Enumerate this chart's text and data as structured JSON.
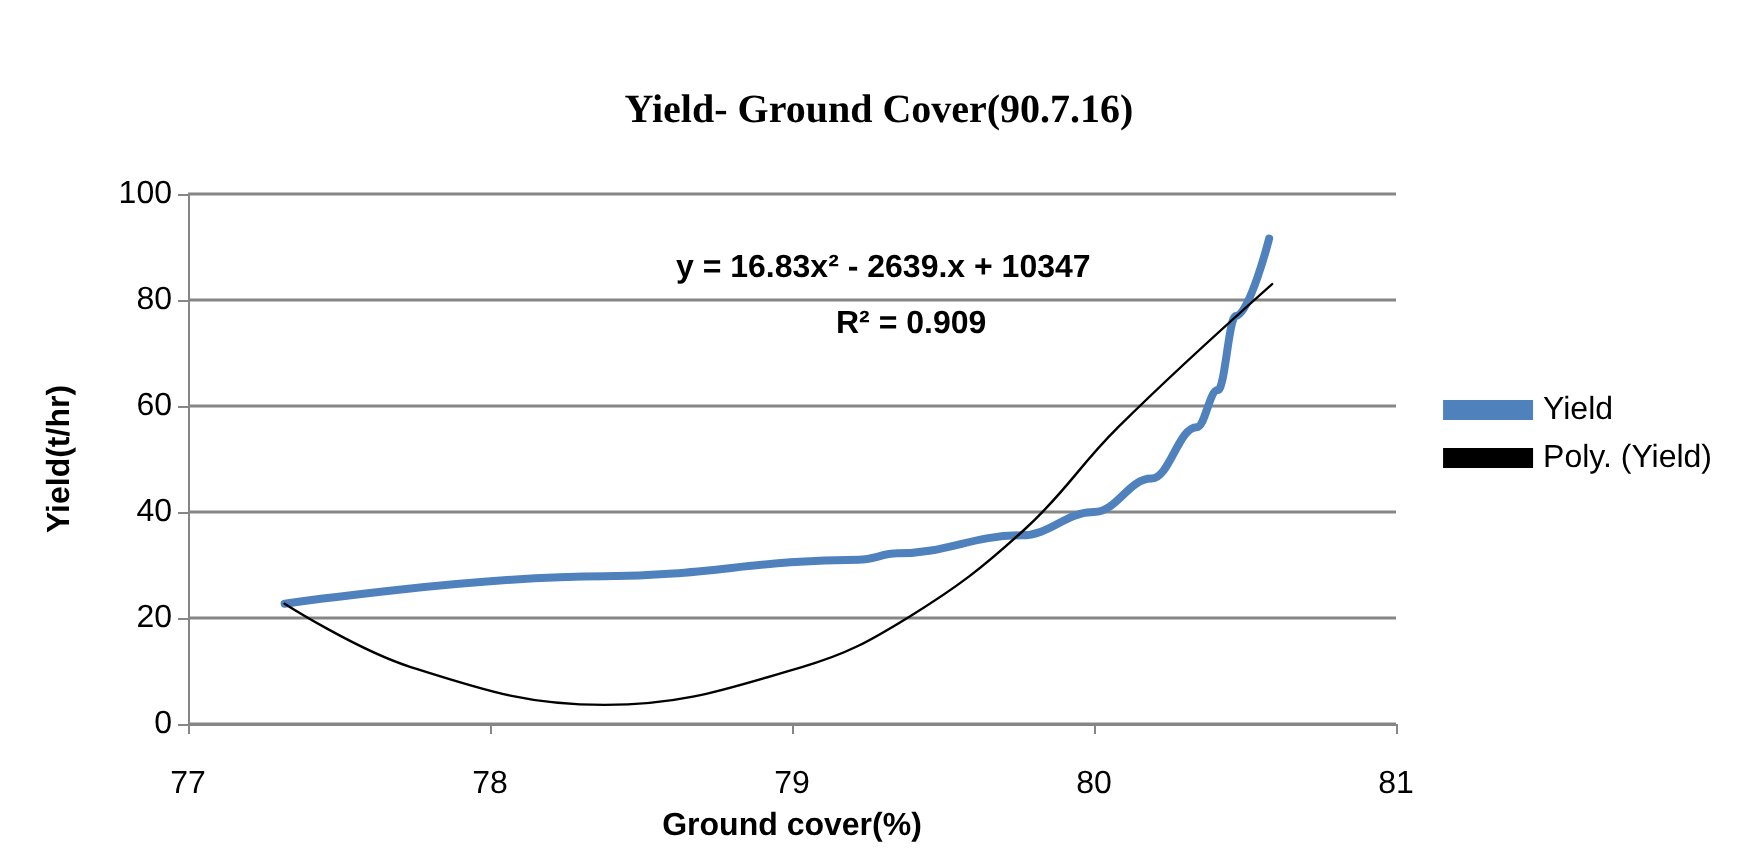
{
  "chart_data": {
    "type": "line",
    "title": "Yield- Ground Cover(90.7.16)",
    "xlabel": "Ground cover(%)",
    "ylabel": "Yield(t/hr)",
    "annotations": [
      "y = 16.83x² - 2639.x + 10347",
      "R² = 0.909"
    ],
    "series": [
      {
        "name": "Yield",
        "color": "#4f81bd",
        "x": [
          77.32,
          78.38,
          79.22,
          79.35,
          79.76,
          80.0,
          80.19,
          80.34,
          80.41,
          80.47,
          80.58
        ],
        "values": [
          22.7,
          27.9,
          31,
          32.2,
          35.6,
          40,
          46.3,
          56,
          63,
          77,
          91.6
        ]
      },
      {
        "name": "Poly. (Yield)",
        "color": "#000000",
        "x": [
          77.32,
          77.74,
          78.38,
          79.03,
          79.39,
          79.77,
          80.08,
          80.59
        ],
        "values": [
          22.7,
          10.7,
          3.6,
          10.7,
          20.3,
          36.7,
          56,
          83
        ]
      }
    ],
    "xlim": [
      77,
      81
    ],
    "xticks": [
      77,
      78,
      79,
      80,
      81
    ],
    "ylim": [
      0,
      100
    ],
    "yticks": [
      0,
      20,
      40,
      60,
      80,
      100
    ],
    "grid": "y",
    "legend": "right",
    "marker": "none",
    "line_style": "solid"
  }
}
